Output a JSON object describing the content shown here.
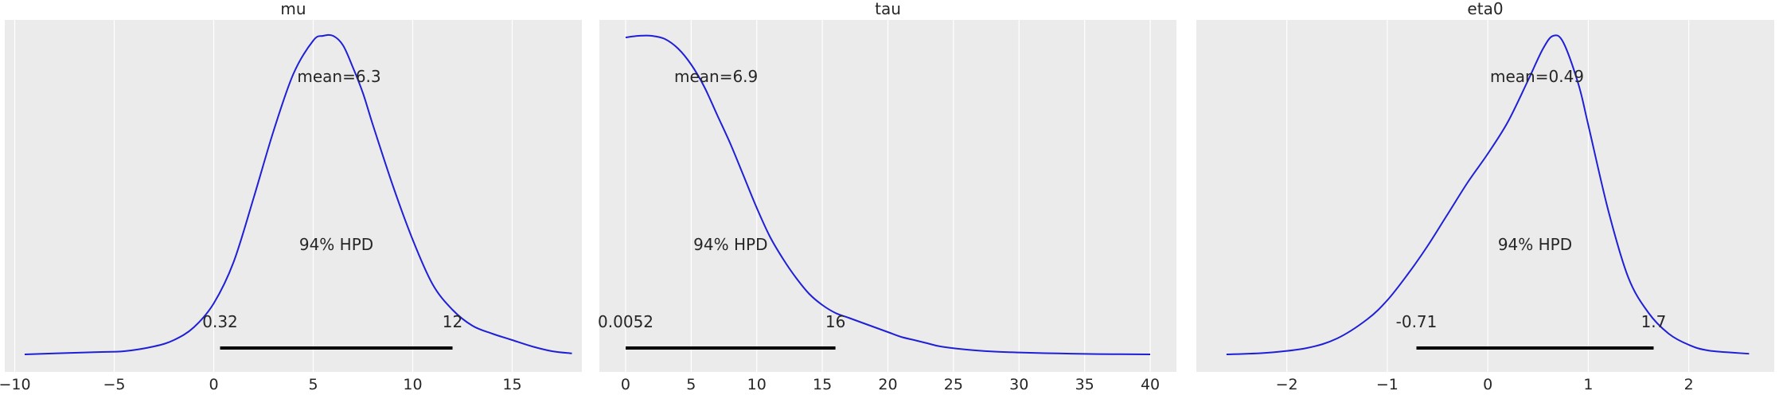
{
  "chart_data": [
    {
      "type": "area",
      "title": "mu",
      "xlabel": "",
      "ylabel": "",
      "xlim": [
        -10.5,
        18.5
      ],
      "xticks": [
        -10,
        -5,
        0,
        5,
        10,
        15
      ],
      "xtick_labels": [
        "−10",
        "−5",
        "0",
        "5",
        "10",
        "15"
      ],
      "grid": true,
      "line_color": "#1f1fd6",
      "density": {
        "x": [
          -9.5,
          -8,
          -6,
          -4.5,
          -3,
          -2,
          -1,
          0,
          1,
          2,
          3,
          4,
          5,
          5.5,
          6,
          6.5,
          7,
          7.5,
          8,
          9,
          10,
          11,
          12,
          13,
          14,
          15,
          16,
          17,
          18
        ],
        "y": [
          0.0,
          0.003,
          0.007,
          0.01,
          0.025,
          0.045,
          0.085,
          0.16,
          0.29,
          0.49,
          0.7,
          0.88,
          0.985,
          1.0,
          1.0,
          0.97,
          0.9,
          0.82,
          0.72,
          0.53,
          0.36,
          0.22,
          0.14,
          0.09,
          0.065,
          0.045,
          0.025,
          0.01,
          0.003
        ]
      },
      "mean_label": "mean=6.3",
      "hpd_label": "94% HPD",
      "hpd_interval": [
        0.32,
        12
      ],
      "hpd_low_label": "0.32",
      "hpd_high_label": "12",
      "mean_x": 6.3
    },
    {
      "type": "area",
      "title": "tau",
      "xlabel": "",
      "ylabel": "",
      "xlim": [
        -2,
        42
      ],
      "xticks": [
        0,
        5,
        10,
        15,
        20,
        25,
        30,
        35,
        40
      ],
      "xtick_labels": [
        "0",
        "5",
        "10",
        "15",
        "20",
        "25",
        "30",
        "35",
        "40"
      ],
      "grid": true,
      "line_color": "#1f1fd6",
      "density": {
        "x": [
          0,
          1,
          2,
          3,
          4,
          5,
          6,
          7,
          8,
          9,
          10,
          11,
          12,
          13,
          14,
          15,
          16,
          17,
          18,
          19,
          20,
          21,
          22,
          23,
          24,
          26,
          28,
          30,
          33,
          36,
          40
        ],
        "y": [
          0.995,
          1.0,
          1.0,
          0.99,
          0.96,
          0.91,
          0.84,
          0.75,
          0.66,
          0.56,
          0.46,
          0.37,
          0.3,
          0.24,
          0.19,
          0.155,
          0.13,
          0.115,
          0.1,
          0.085,
          0.07,
          0.055,
          0.045,
          0.035,
          0.025,
          0.015,
          0.009,
          0.006,
          0.003,
          0.001,
          0.0
        ]
      },
      "mean_label": "mean=6.9",
      "hpd_label": "94% HPD",
      "hpd_interval": [
        0.0052,
        16
      ],
      "hpd_low_label": "0.0052",
      "hpd_high_label": "16",
      "mean_x": 6.9
    },
    {
      "type": "area",
      "title": "eta0",
      "xlabel": "",
      "ylabel": "",
      "xlim": [
        -2.9,
        2.85
      ],
      "xticks": [
        -2,
        -1,
        0,
        1,
        2
      ],
      "xtick_labels": [
        "−2",
        "−1",
        "0",
        "1",
        "2"
      ],
      "grid": true,
      "line_color": "#1f1fd6",
      "density": {
        "x": [
          -2.6,
          -2.2,
          -1.8,
          -1.5,
          -1.2,
          -1.0,
          -0.8,
          -0.6,
          -0.4,
          -0.2,
          0.0,
          0.2,
          0.4,
          0.55,
          0.65,
          0.75,
          0.9,
          1.0,
          1.2,
          1.4,
          1.6,
          1.8,
          2.0,
          2.2,
          2.6
        ],
        "y": [
          0.0,
          0.005,
          0.02,
          0.05,
          0.11,
          0.17,
          0.25,
          0.34,
          0.44,
          0.54,
          0.63,
          0.73,
          0.86,
          0.96,
          1.0,
          0.98,
          0.85,
          0.72,
          0.45,
          0.24,
          0.13,
          0.065,
          0.03,
          0.012,
          0.002
        ]
      },
      "mean_label": "mean=0.49",
      "hpd_label": "94% HPD",
      "hpd_interval": [
        -0.71,
        1.65
      ],
      "hpd_low_label": "-0.71",
      "hpd_high_label": "1.7",
      "mean_x": 0.49
    }
  ]
}
